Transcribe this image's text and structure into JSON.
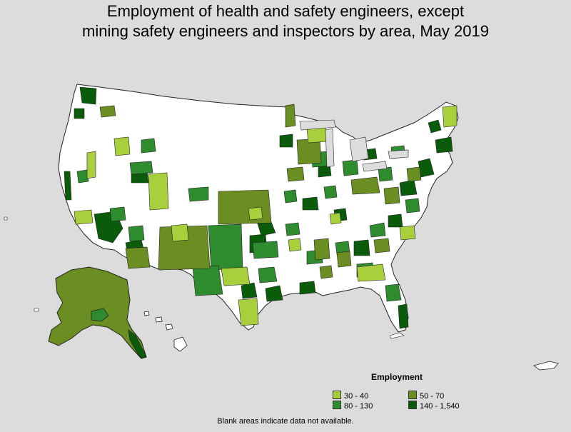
{
  "title_line1": "Employment of health and safety engineers, except",
  "title_line2": "mining safety engineers and inspectors by area, May 2019",
  "legend": {
    "title": "Employment",
    "items": [
      {
        "label": "30 - 40",
        "color": "#a8d03c"
      },
      {
        "label": "50 - 70",
        "color": "#6b8e23"
      },
      {
        "label": "80 - 130",
        "color": "#2e8b2e"
      },
      {
        "label": "140 - 1,540",
        "color": "#0a5c0a"
      }
    ]
  },
  "note": "Blank areas indicate data not available.",
  "colors": {
    "background": "#dcdcdc",
    "no_data": "#ffffff",
    "border": "#222222"
  }
}
